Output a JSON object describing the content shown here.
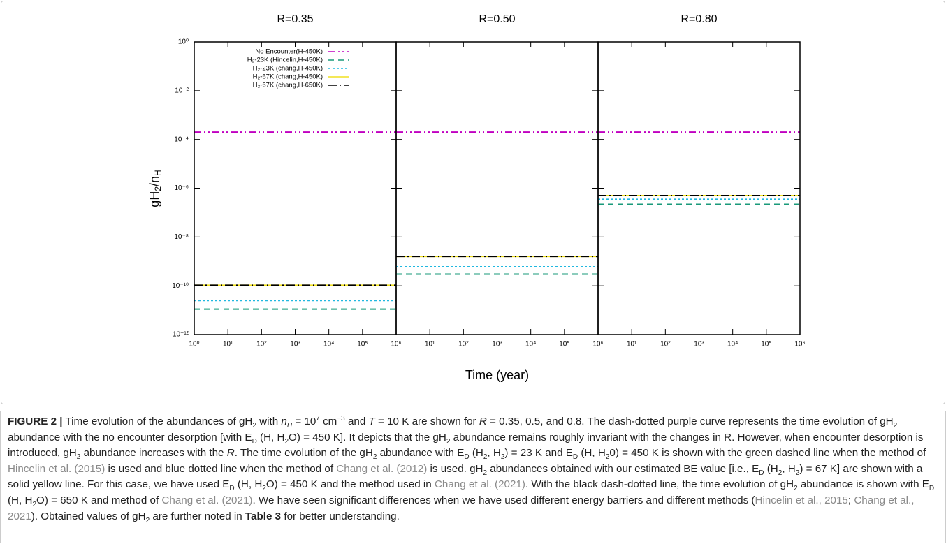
{
  "chart_data": [
    {
      "type": "line",
      "title": "R=0.35",
      "xlabel": "Time (year)",
      "ylabel": [
        {
          "t": "gH"
        },
        {
          "t": "2",
          "s": "sub"
        },
        {
          "t": "/n"
        },
        {
          "t": "H",
          "s": "sub"
        }
      ],
      "log_x": true,
      "log_y": true,
      "xlim": [
        1,
        1000000
      ],
      "ylim": [
        1e-12,
        1
      ],
      "xticks": [
        {
          "value": 1,
          "label": "10⁰"
        },
        {
          "value": 10,
          "label": "10¹"
        },
        {
          "value": 100,
          "label": "10²"
        },
        {
          "value": 1000,
          "label": "10³"
        },
        {
          "value": 10000,
          "label": "10⁴"
        },
        {
          "value": 100000,
          "label": "10⁵"
        },
        {
          "value": 1000000,
          "label": "10⁶"
        }
      ],
      "yticks": [
        {
          "value": 1e-12,
          "label": "10⁻¹²"
        },
        {
          "value": 1e-10,
          "label": "10⁻¹⁰"
        },
        {
          "value": 1e-08,
          "label": "10⁻⁸"
        },
        {
          "value": 1e-06,
          "label": "10⁻⁶"
        },
        {
          "value": 0.0001,
          "label": "10⁻⁴"
        },
        {
          "value": 0.01,
          "label": "10⁻²"
        },
        {
          "value": 1,
          "label": "10⁰"
        }
      ],
      "legend": "upper left",
      "x": [
        1,
        1000000
      ],
      "series": [
        {
          "name": "No Encounter(H-450K)",
          "color": "#c000c0",
          "dash": "10 4 2 4 2 4",
          "values": [
            0.0002,
            0.0002
          ]
        },
        {
          "name": "H₂-23K (Hincelin,H-450K)",
          "color": "#1a9a7a",
          "dash": "8 6",
          "values": [
            1.1e-11,
            1.1e-11
          ]
        },
        {
          "name": "H₂-23K (chang,H-450K)",
          "color": "#20b8e0",
          "dash": "3 3",
          "values": [
            2.5e-11,
            2.5e-11
          ]
        },
        {
          "name": "H₂-67K (chang,H-450K)",
          "color": "#f0e020",
          "dash": "",
          "values": [
            1.05e-10,
            1.05e-10
          ]
        },
        {
          "name": "H₂-67K (chang,H-650K)",
          "color": "#000000",
          "dash": "12 4 2 4",
          "values": [
            1.05e-10,
            1.05e-10
          ]
        }
      ]
    },
    {
      "type": "line",
      "title": "R=0.50",
      "log_x": true,
      "log_y": true,
      "xlim": [
        1,
        1000000
      ],
      "ylim": [
        1e-12,
        1
      ],
      "xticks": [
        {
          "value": 10,
          "label": "10¹"
        },
        {
          "value": 100,
          "label": "10²"
        },
        {
          "value": 1000,
          "label": "10³"
        },
        {
          "value": 10000,
          "label": "10⁴"
        },
        {
          "value": 100000,
          "label": "10⁵"
        },
        {
          "value": 1000000,
          "label": "10⁶"
        }
      ],
      "x": [
        1,
        1000000
      ],
      "series": [
        {
          "color": "#c000c0",
          "dash": "10 4 2 4 2 4",
          "values": [
            0.0002,
            0.0002
          ]
        },
        {
          "color": "#1a9a7a",
          "dash": "8 6",
          "values": [
            3e-10,
            3e-10
          ]
        },
        {
          "color": "#20b8e0",
          "dash": "3 3",
          "values": [
            6e-10,
            6e-10
          ]
        },
        {
          "color": "#f0e020",
          "dash": "",
          "values": [
            1.6e-09,
            1.6e-09
          ]
        },
        {
          "color": "#000000",
          "dash": "12 4 2 4",
          "values": [
            1.6e-09,
            1.6e-09
          ]
        }
      ]
    },
    {
      "type": "line",
      "title": "R=0.80",
      "log_x": true,
      "log_y": true,
      "xlim": [
        1,
        1000000
      ],
      "ylim": [
        1e-12,
        1
      ],
      "xticks": [
        {
          "value": 10,
          "label": "10¹"
        },
        {
          "value": 100,
          "label": "10²"
        },
        {
          "value": 1000,
          "label": "10³"
        },
        {
          "value": 10000,
          "label": "10⁴"
        },
        {
          "value": 100000,
          "label": "10⁵"
        },
        {
          "value": 1000000,
          "label": "10⁶"
        }
      ],
      "x": [
        1,
        1000000
      ],
      "series": [
        {
          "color": "#c000c0",
          "dash": "10 4 2 4 2 4",
          "values": [
            0.0002,
            0.0002
          ]
        },
        {
          "color": "#1a9a7a",
          "dash": "8 6",
          "values": [
            2.2e-07,
            2.2e-07
          ]
        },
        {
          "color": "#20b8e0",
          "dash": "3 3",
          "values": [
            3.5e-07,
            3.5e-07
          ]
        },
        {
          "color": "#f0e020",
          "dash": "",
          "values": [
            5e-07,
            5e-07
          ]
        },
        {
          "color": "#000000",
          "dash": "12 4 2 4",
          "values": [
            5e-07,
            5e-07
          ]
        }
      ]
    }
  ],
  "caption": [
    {
      "t": "FIGURE 2 |",
      "s": "b"
    },
    {
      "t": " Time evolution of the abundances of gH"
    },
    {
      "t": "2",
      "s": "sub"
    },
    {
      "t": " with "
    },
    {
      "t": "n",
      "s": "i"
    },
    {
      "t": "H",
      "s": "isub"
    },
    {
      "t": " = 10"
    },
    {
      "t": "7",
      "s": "sup"
    },
    {
      "t": "  cm"
    },
    {
      "t": "−3",
      "s": "sup"
    },
    {
      "t": " and "
    },
    {
      "t": "T",
      "s": "i"
    },
    {
      "t": " = 10  K are shown for "
    },
    {
      "t": "R",
      "s": "i"
    },
    {
      "t": " = 0.35, 0.5, and 0.8. The dash-dotted purple curve represents the time evolution of gH"
    },
    {
      "t": "2",
      "s": "sub"
    },
    {
      "t": " abundance with the no encounter desorption [with E"
    },
    {
      "t": "D",
      "s": "sub"
    },
    {
      "t": " (H, H"
    },
    {
      "t": "2",
      "s": "sub"
    },
    {
      "t": "O) = 450 K]. It depicts that the gH"
    },
    {
      "t": "2",
      "s": "sub"
    },
    {
      "t": " abundance remains roughly invariant with the changes in R. However, when encounter desorption is introduced, gH"
    },
    {
      "t": "2",
      "s": "sub"
    },
    {
      "t": " abundance increases with the "
    },
    {
      "t": "R",
      "s": "i"
    },
    {
      "t": ". The time evolution of the gH"
    },
    {
      "t": "2",
      "s": "sub"
    },
    {
      "t": " abundance with E"
    },
    {
      "t": "D",
      "s": "sub"
    },
    {
      "t": " (H"
    },
    {
      "t": "2",
      "s": "sub"
    },
    {
      "t": ", H"
    },
    {
      "t": "2",
      "s": "sub"
    },
    {
      "t": ") = 23  K and E"
    },
    {
      "t": "D",
      "s": "sub"
    },
    {
      "t": " (H, H"
    },
    {
      "t": "2",
      "s": "sub"
    },
    {
      "t": "0) = 450  K is shown with the green dashed line when the method of "
    },
    {
      "t": "Hincelin et al. (2015)",
      "s": "link"
    },
    {
      "t": " is used and blue dotted line when the method of "
    },
    {
      "t": "Chang et al. (2012)",
      "s": "link"
    },
    {
      "t": " is used. gH"
    },
    {
      "t": "2",
      "s": "sub"
    },
    {
      "t": " abundances obtained with our estimated BE value [i.e., E"
    },
    {
      "t": "D",
      "s": "sub"
    },
    {
      "t": " (H"
    },
    {
      "t": "2",
      "s": "sub"
    },
    {
      "t": ", H"
    },
    {
      "t": "2",
      "s": "sub"
    },
    {
      "t": ") = 67  K] are shown with a solid yellow line. For this case, we have used E"
    },
    {
      "t": "D",
      "s": "sub"
    },
    {
      "t": " (H, H"
    },
    {
      "t": "2",
      "s": "sub"
    },
    {
      "t": "O) = 450  K and the method used in "
    },
    {
      "t": "Chang et al. (2021)",
      "s": "link"
    },
    {
      "t": ". With the black dash-dotted line, the time evolution of gH"
    },
    {
      "t": "2",
      "s": "sub"
    },
    {
      "t": " abundance is shown with E"
    },
    {
      "t": "D",
      "s": "sub"
    },
    {
      "t": " (H, H"
    },
    {
      "t": "2",
      "s": "sub"
    },
    {
      "t": "O) = 650  K and method of "
    },
    {
      "t": "Chang et al. (2021)",
      "s": "link"
    },
    {
      "t": ". We have seen significant differences when we have used different energy barriers and different methods ("
    },
    {
      "t": "Hincelin et al., 2015",
      "s": "link"
    },
    {
      "t": "; "
    },
    {
      "t": "Chang et al., 2021",
      "s": "link"
    },
    {
      "t": "). Obtained values of gH"
    },
    {
      "t": "2",
      "s": "sub"
    },
    {
      "t": " are further noted in "
    },
    {
      "t": "Table 3",
      "s": "b"
    },
    {
      "t": " for better understanding."
    }
  ]
}
